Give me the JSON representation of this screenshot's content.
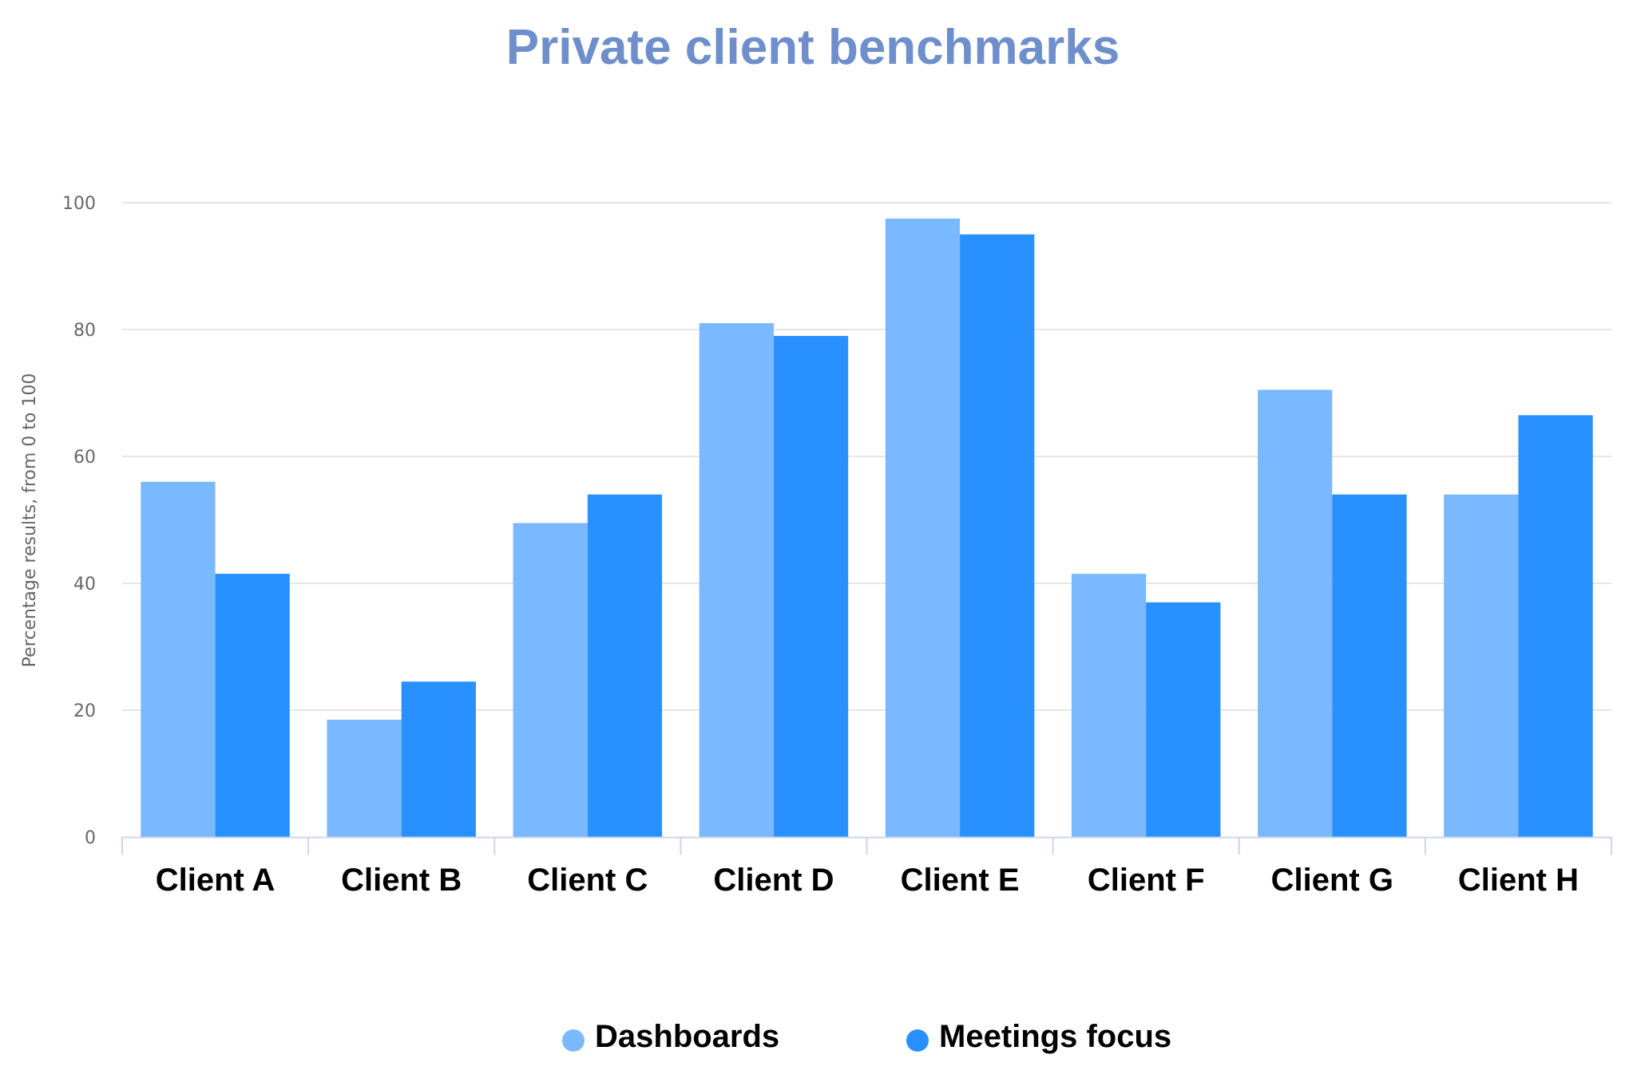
{
  "chart_data": {
    "type": "bar",
    "title": "Private client benchmarks",
    "xlabel": "",
    "ylabel": "Percentage results, from 0 to 100",
    "ylim": [
      0,
      100
    ],
    "yticks": [
      0,
      20,
      40,
      60,
      80,
      100
    ],
    "grid": true,
    "legend_position": "bottom",
    "categories": [
      "Client A",
      "Client B",
      "Client C",
      "Client D",
      "Client E",
      "Client F",
      "Client G",
      "Client H"
    ],
    "series": [
      {
        "name": "Dashboards",
        "color": "#7ab9ff",
        "values": [
          56,
          18.5,
          49.5,
          81,
          97.5,
          41.5,
          70.5,
          54
        ]
      },
      {
        "name": "Meetings focus",
        "color": "#2990ff",
        "values": [
          41.5,
          24.5,
          54,
          79,
          95,
          37,
          54,
          66.5
        ]
      }
    ],
    "colors": {
      "title": "#6e8fcb",
      "axis_text": "#666666",
      "category_text": "#000000",
      "gridline": "#e6e6e6",
      "axis_line": "#ccd6eb"
    }
  }
}
